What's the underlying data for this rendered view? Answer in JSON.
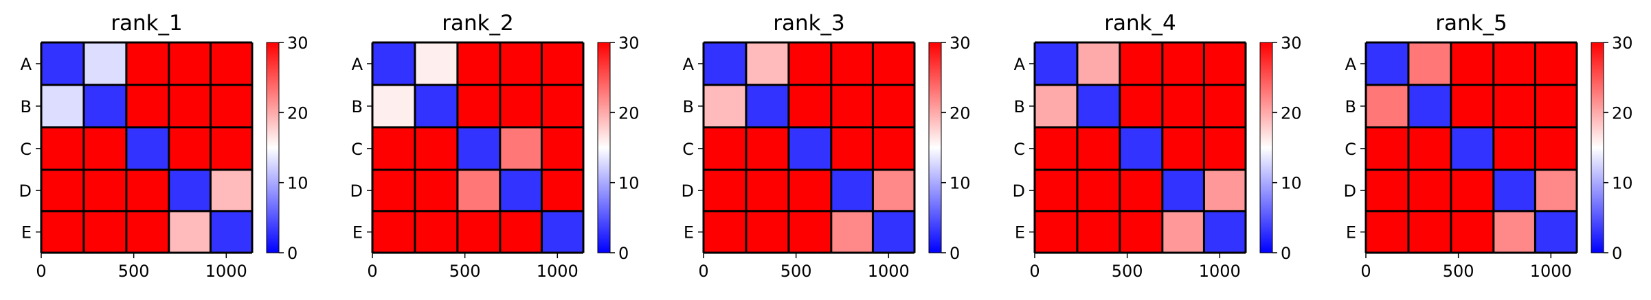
{
  "chart_data": {
    "type": "heatmap",
    "panels": [
      {
        "title": "rank_1",
        "block_values": [
          [
            3,
            13,
            30,
            30,
            30
          ],
          [
            13,
            3,
            30,
            30,
            30
          ],
          [
            30,
            30,
            3,
            30,
            30
          ],
          [
            30,
            30,
            30,
            3,
            19
          ],
          [
            30,
            30,
            30,
            19,
            3
          ]
        ]
      },
      {
        "title": "rank_2",
        "block_values": [
          [
            3,
            16,
            30,
            30,
            30
          ],
          [
            16,
            3,
            30,
            30,
            30
          ],
          [
            30,
            30,
            3,
            23,
            30
          ],
          [
            30,
            30,
            23,
            3,
            30
          ],
          [
            30,
            30,
            30,
            30,
            3
          ]
        ]
      },
      {
        "title": "rank_3",
        "block_values": [
          [
            3,
            19,
            30,
            30,
            30
          ],
          [
            19,
            3,
            30,
            30,
            30
          ],
          [
            30,
            30,
            3,
            30,
            30
          ],
          [
            30,
            30,
            30,
            3,
            22
          ],
          [
            30,
            30,
            30,
            22,
            3
          ]
        ]
      },
      {
        "title": "rank_4",
        "block_values": [
          [
            3,
            20,
            30,
            30,
            30
          ],
          [
            20,
            3,
            30,
            30,
            30
          ],
          [
            30,
            30,
            3,
            30,
            30
          ],
          [
            30,
            30,
            30,
            3,
            21
          ],
          [
            30,
            30,
            30,
            21,
            3
          ]
        ]
      },
      {
        "title": "rank_5",
        "block_values": [
          [
            3,
            23,
            30,
            30,
            30
          ],
          [
            23,
            3,
            30,
            30,
            30
          ],
          [
            30,
            30,
            3,
            30,
            30
          ],
          [
            30,
            30,
            30,
            3,
            22
          ],
          [
            30,
            30,
            30,
            22,
            3
          ]
        ]
      }
    ],
    "row_labels": [
      "A",
      "B",
      "C",
      "D",
      "E"
    ],
    "block_bounds": [
      0,
      230,
      460,
      690,
      915,
      1140
    ],
    "x_ticks": [
      0,
      500,
      1000
    ],
    "x_tick_labels": [
      "0",
      "500",
      "1000"
    ],
    "xlim": [
      0,
      1140
    ],
    "colorbar": {
      "vmin": 0,
      "vmax": 30,
      "ticks": [
        0,
        10,
        20,
        30
      ],
      "tick_labels": [
        "0",
        "10",
        "20",
        "30"
      ],
      "colormap": "bwr"
    },
    "grid": false
  }
}
